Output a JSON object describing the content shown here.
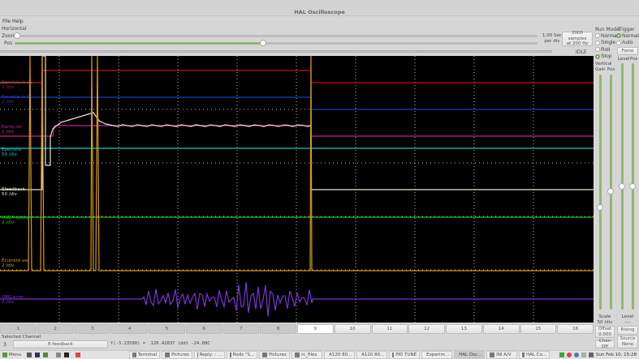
{
  "window": {
    "title": "HAL Oscilloscope"
  },
  "menu": {
    "file": "File",
    "help": "Help"
  },
  "horizontal": {
    "label": "Horizontal",
    "zoom_label": "Zoom",
    "pos_label": "Pos",
    "zoom_value": 0,
    "pos_value": 0.81,
    "scale": "1.00 Sec",
    "scale_unit": "per div",
    "samples": "2000 samples",
    "rate": "at 200 Hz",
    "status": "IDLE"
  },
  "run_mode": {
    "label": "Run Mode",
    "options": [
      "Normal",
      "Single",
      "Roll",
      "Stop"
    ],
    "selected": "Stop"
  },
  "trigger": {
    "label": "Trigger",
    "options": [
      "Normal",
      "Auto"
    ],
    "selected": "Normal",
    "force": "Force",
    "level_label": "Level",
    "pos_label": "Pos",
    "level_value": "----",
    "level_title": "Level",
    "rising": "Rising",
    "source_label": "Source",
    "source_value": "None"
  },
  "vertical": {
    "label": "Vertical",
    "gain_label": "Gain",
    "pos_label": "Pos",
    "scale_label": "Scale",
    "scale_value": "50 /div",
    "offset_label": "Offset",
    "offset_value": "0.000",
    "chan_off": "Chan Off"
  },
  "channels_display": [
    {
      "name": "Eenable-in-a",
      "scale": "2 /div",
      "color": "#cc1111"
    },
    {
      "name": "Eenable-in-b",
      "scale": "2 /div",
      "color": "#1a3ccc"
    },
    {
      "name": "Eamp-ok",
      "scale": "2 /div",
      "color": "#cc1a9a"
    },
    {
      "name": "Eperturb",
      "scale": "50 /div",
      "color": "#19c6c6"
    },
    {
      "name": "Efeedback",
      "scale": "50 /div",
      "color": "#e6e6d0"
    },
    {
      "name": "DBG:holding",
      "scale": "2 /div",
      "color": "#19c619"
    },
    {
      "name": "Ecurrent-vel",
      "scale": "2 /div",
      "color": "#d89a1a"
    },
    {
      "name": "DBG:error",
      "scale": "2 /div",
      "color": "#7a33d6"
    }
  ],
  "channel_buttons": [
    "1",
    "2",
    "3",
    "4",
    "5",
    "6",
    "7",
    "8",
    "9",
    "10",
    "11",
    "12",
    "13",
    "14",
    "15",
    "16"
  ],
  "selected_channel": {
    "label": "Selected Channel",
    "number": "3",
    "name": "E-feedback",
    "readout": "f(-3.13500) =  120.42037 (ddt -24.08C"
  },
  "taskbar": {
    "menu": "Menu",
    "items": [
      "Terminal",
      "Pictures",
      "Reply: - ...",
      "Rods \"S...",
      "Pictures",
      "rc_files",
      "A120 80...",
      "A120 80...",
      "PID TUNE",
      "Experim...",
      "HAL Osc...",
      "INI A/V",
      "HAL Co..."
    ],
    "active": "HAL Osc...",
    "clock": "Sun Feb 10, 15:28"
  }
}
